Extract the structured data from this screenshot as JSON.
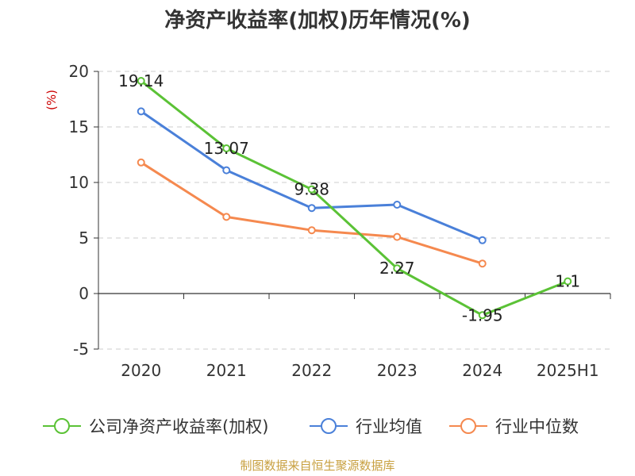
{
  "chart_data": {
    "type": "line",
    "title": "净资产收益率(加权)历年情况(%)",
    "ylabel": "(%)",
    "categories": [
      "2020",
      "2021",
      "2022",
      "2023",
      "2024",
      "2025H1"
    ],
    "y_ticks": [
      "20",
      "15",
      "10",
      "5",
      "0",
      "-5"
    ],
    "ylim": [
      -5,
      20
    ],
    "grid": true,
    "legend_position": "bottom",
    "series": [
      {
        "name": "公司净资产收益率(加权)",
        "color": "#5bc236",
        "values": [
          19.14,
          13.07,
          9.38,
          2.27,
          -1.95,
          1.1
        ],
        "labels": [
          "19.14",
          "13.07",
          "9.38",
          "2.27",
          "-1.95",
          "1.1"
        ]
      },
      {
        "name": "行业均值",
        "color": "#4a80d9",
        "values": [
          16.4,
          11.1,
          7.7,
          8.0,
          4.8,
          null
        ]
      },
      {
        "name": "行业中位数",
        "color": "#f5894f",
        "values": [
          11.8,
          6.9,
          5.7,
          5.1,
          2.7,
          null
        ]
      }
    ]
  },
  "source": "制图数据来自恒生聚源数据库"
}
